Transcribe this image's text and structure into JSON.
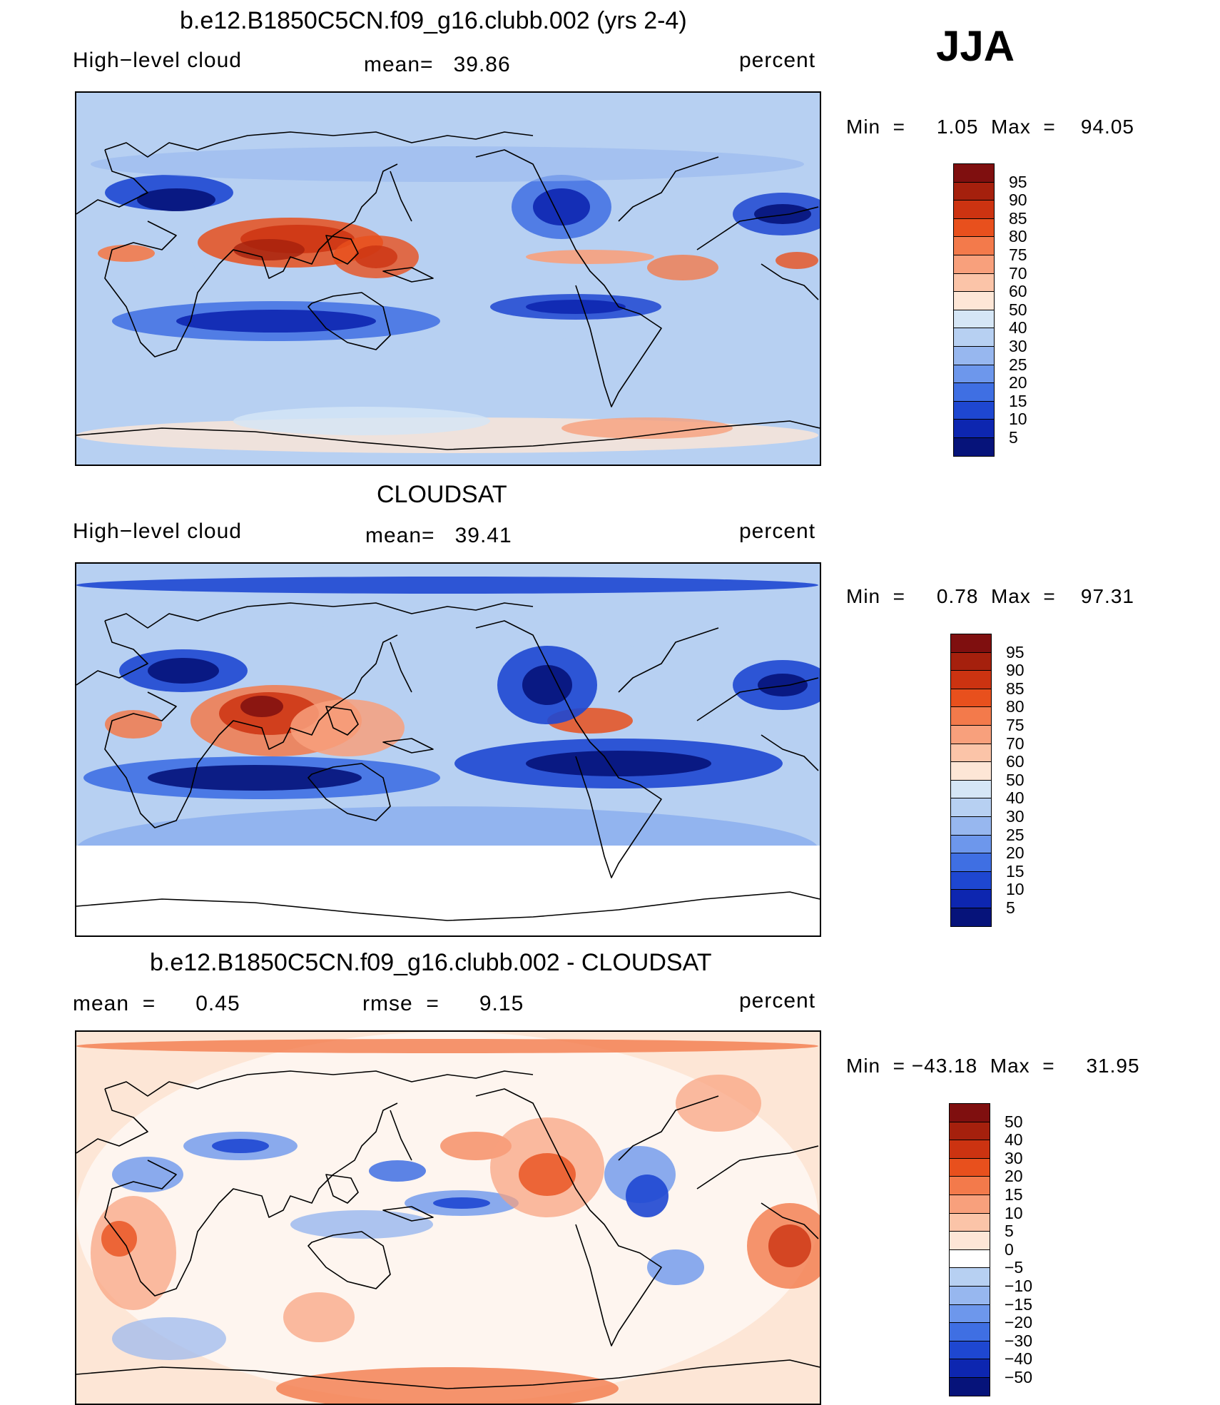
{
  "season": "JJA",
  "panels": [
    {
      "title": "b.e12.B1850C5CN.f09_g16.clubb.002 (yrs 2-4)",
      "left_label": "High−level cloud",
      "mean_text": "mean=   39.86",
      "units": "percent",
      "minmax_text": "Min  =     1.05  Max  =    94.05",
      "colorbar": {
        "labels": [
          "95",
          "90",
          "85",
          "80",
          "75",
          "70",
          "60",
          "50",
          "40",
          "30",
          "25",
          "20",
          "15",
          "10",
          "5"
        ],
        "colors": [
          "#7f0f0f",
          "#a5200d",
          "#cc3311",
          "#e8501d",
          "#f37a4b",
          "#f8a07c",
          "#fbc4a8",
          "#fde6d6",
          "#d5e6f6",
          "#b7d0f2",
          "#97b7ef",
          "#6d97ec",
          "#3f6fe3",
          "#1e47d1",
          "#0d26b0",
          "#06137a"
        ]
      },
      "field": "model"
    },
    {
      "title": "CLOUDSAT",
      "left_label": "High−level cloud",
      "mean_text": "mean=   39.41",
      "units": "percent",
      "minmax_text": "Min  =     0.78  Max  =    97.31",
      "colorbar": {
        "labels": [
          "95",
          "90",
          "85",
          "80",
          "75",
          "70",
          "60",
          "50",
          "40",
          "30",
          "25",
          "20",
          "15",
          "10",
          "5"
        ],
        "colors": [
          "#7f0f0f",
          "#a5200d",
          "#cc3311",
          "#e8501d",
          "#f37a4b",
          "#f8a07c",
          "#fbc4a8",
          "#fde6d6",
          "#d5e6f6",
          "#b7d0f2",
          "#97b7ef",
          "#6d97ec",
          "#3f6fe3",
          "#1e47d1",
          "#0d26b0",
          "#06137a"
        ]
      },
      "field": "obs"
    },
    {
      "title": "b.e12.B1850C5CN.f09_g16.clubb.002 - CLOUDSAT",
      "left_label": "mean  =      0.45",
      "mean_text": "rmse  =      9.15",
      "units": "percent",
      "minmax_text": "Min  = −43.18  Max  =     31.95",
      "colorbar": {
        "labels": [
          "50",
          "40",
          "30",
          "20",
          "15",
          "10",
          "5",
          "0",
          "−5",
          "−10",
          "−15",
          "−20",
          "−30",
          "−40",
          "−50"
        ],
        "colors": [
          "#7f0f0f",
          "#a5200d",
          "#cc3311",
          "#e8501d",
          "#f37a4b",
          "#f8a07c",
          "#fbc4a8",
          "#fde6d6",
          "#ffffff",
          "#b7d0f2",
          "#97b7ef",
          "#6d97ec",
          "#3f6fe3",
          "#1e47d1",
          "#0d26b0",
          "#06137a"
        ]
      },
      "field": "diff"
    }
  ]
}
